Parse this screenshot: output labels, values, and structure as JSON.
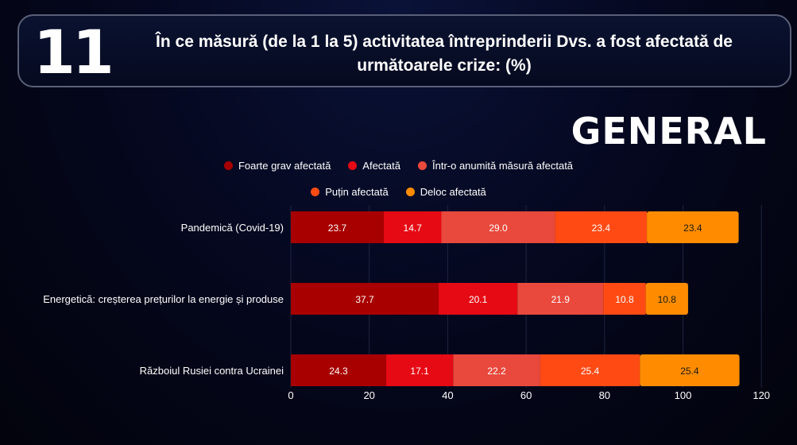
{
  "header": {
    "question_number": "11",
    "title": "În ce măsură (de la 1 la 5) activitatea întreprinderii Dvs. a fost afectată de următoarele crize: (%)"
  },
  "section_label": "GENERAL",
  "legend": {
    "row1": [
      {
        "label": "Foarte grav afectată",
        "color": "#a80000"
      },
      {
        "label": "Afectată",
        "color": "#e50a14"
      },
      {
        "label": "Într-o anumită măsură afectată",
        "color": "#e8493c"
      }
    ],
    "row2": [
      {
        "label": "Puțin afectată",
        "color": "#ff4a14"
      },
      {
        "label": "Deloc afectată",
        "color": "#ff8c00"
      }
    ]
  },
  "chart_data": {
    "type": "bar",
    "orientation": "horizontal",
    "stacked": true,
    "categories": [
      "Pandemică (Covid-19)",
      "Energetică: creșterea prețurilor la energie și produse",
      "Războiul Rusiei contra Ucrainei"
    ],
    "series": [
      {
        "name": "Foarte grav afectată",
        "color": "#a80000",
        "values": [
          23.7,
          37.7,
          24.3
        ]
      },
      {
        "name": "Afectată",
        "color": "#e50a14",
        "values": [
          14.7,
          20.1,
          17.1
        ]
      },
      {
        "name": "Într-o anumită măsură afectată",
        "color": "#e8493c",
        "values": [
          29.0,
          21.9,
          22.2
        ]
      },
      {
        "name": "Puțin afectată",
        "color": "#ff4a14",
        "values": [
          23.4,
          10.8,
          25.4
        ]
      },
      {
        "name": "Deloc afectată",
        "color": "#ff8c00",
        "values": [
          23.4,
          10.8,
          25.4
        ]
      }
    ],
    "data_labels": [
      [
        "23.7",
        "14.7",
        "29.0",
        "23.4",
        "23.4"
      ],
      [
        "37.7",
        "20.1",
        "21.9",
        "10.8",
        "10.8"
      ],
      [
        "24.3",
        "17.1",
        "22.2",
        "25.4",
        "25.4"
      ]
    ],
    "xlim": [
      0,
      120
    ],
    "xticks": [
      "0",
      "20",
      "40",
      "60",
      "80",
      "100",
      "120"
    ],
    "xlabel": "",
    "ylabel": "",
    "grid": true,
    "legend_position": "top"
  }
}
